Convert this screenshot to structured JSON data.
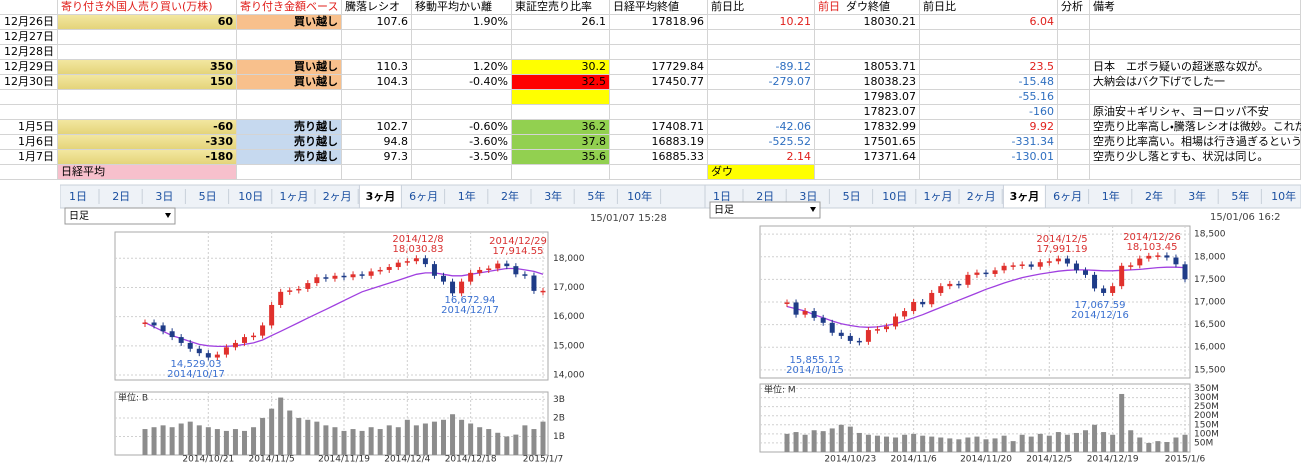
{
  "sheet": {
    "header": [
      null,
      "寄り付き外国人売り買い(万株)",
      "寄り付き金額ベース",
      "騰落レシオ",
      "移動平均かい離",
      "東証空売り比率",
      "日経平均終値",
      "前日比",
      [
        "前日",
        "ダウ終値"
      ],
      "前日比",
      "分析",
      "備考"
    ],
    "rows": [
      [
        "12月26日",
        "60",
        "買い越し",
        "107.6",
        "1.90%",
        "26.1",
        "17818.96",
        "10.21",
        "18030.21",
        "6.04",
        null,
        null
      ],
      [
        "12月27日",
        null,
        null,
        null,
        null,
        null,
        null,
        null,
        null,
        null,
        null,
        null
      ],
      [
        "12月28日",
        null,
        null,
        null,
        null,
        null,
        null,
        null,
        null,
        null,
        null,
        null
      ],
      [
        "12月29日",
        "350",
        "買い越し",
        "110.3",
        "1.20%",
        "30.2",
        "17729.84",
        "-89.12",
        "18053.71",
        "23.5",
        null,
        "日本　エボラ疑いの超迷惑な奴が。"
      ],
      [
        "12月30日",
        "150",
        "買い越し",
        "104.3",
        "-0.40%",
        "32.5",
        "17450.77",
        "-279.07",
        "18038.23",
        "-15.48",
        null,
        "大納会はバク下げでした一"
      ],
      [
        null,
        null,
        null,
        null,
        null,
        null,
        null,
        null,
        "17983.07",
        "-55.16",
        null,
        null
      ],
      [
        null,
        null,
        null,
        null,
        null,
        null,
        null,
        null,
        "17823.07",
        "-160",
        null,
        "原油安＋ギリシャ、ヨーロッパ不安"
      ],
      [
        "1月5日",
        "-60",
        "売り越し",
        "102.7",
        "-0.60%",
        "36.2",
        "17408.71",
        "-42.06",
        "17832.99",
        "9.92",
        null,
        "空売り比率高し・騰落レシオは微妙。これだけ"
      ],
      [
        "1月6日",
        "-330",
        "売り越し",
        "94.8",
        "-3.60%",
        "37.8",
        "16883.19",
        "-525.52",
        "17501.65",
        "-331.34",
        null,
        "空売り比率高い。相場は行き過ぎるというが・"
      ],
      [
        "1月7日",
        "-180",
        "売り越し",
        "97.3",
        "-3.50%",
        "35.6",
        "16885.33",
        "2.14",
        "17371.64",
        "-130.01",
        null,
        "空売り少し落とすも、状況は同じ。"
      ],
      [
        null,
        "日経平均",
        null,
        null,
        null,
        null,
        null,
        "ダウ",
        null,
        null,
        null,
        null
      ]
    ]
  },
  "chart_data": [
    {
      "type": "candlestick",
      "tabs": [
        "1日",
        "2日",
        "3日",
        "5日",
        "10日",
        "1ヶ月",
        "2ヶ月",
        "3ヶ月",
        "6ヶ月",
        "1年",
        "2年",
        "3年",
        "5年",
        "10年"
      ],
      "dropdown": "日足",
      "timestamp": "15/01/07 15:28",
      "categories": [
        null,
        null,
        null,
        null,
        null,
        null,
        null,
        "2014/10/21",
        null,
        null,
        null,
        null,
        null,
        null,
        "2014/11/5",
        null,
        null,
        null,
        null,
        null,
        null,
        null,
        "2014/11/19",
        null,
        null,
        null,
        null,
        null,
        null,
        "2014/12/4",
        null,
        null,
        null,
        null,
        null,
        null,
        "2014/12/18",
        null,
        null,
        null,
        null,
        null,
        null,
        null,
        "2015/1/7"
      ],
      "close": [
        15800,
        15700,
        15500,
        15300,
        15100,
        14900,
        14750,
        14600,
        14700,
        14950,
        15100,
        15300,
        15350,
        15700,
        16400,
        16850,
        16900,
        16950,
        17150,
        17350,
        17300,
        17400,
        17350,
        17450,
        17400,
        17550,
        17600,
        17700,
        17850,
        17900,
        18000,
        17800,
        17400,
        17200,
        16800,
        17200,
        17500,
        17600,
        17650,
        17818,
        17730,
        17451,
        17409,
        16883,
        16885
      ],
      "ma": [
        15800,
        15650,
        15500,
        15350,
        15250,
        15150,
        15050,
        15000,
        14980,
        14980,
        15000,
        15050,
        15100,
        15200,
        15350,
        15500,
        15650,
        15800,
        15950,
        16100,
        16250,
        16400,
        16550,
        16700,
        16850,
        16950,
        17050,
        17150,
        17250,
        17350,
        17450,
        17500,
        17500,
        17450,
        17400,
        17400,
        17450,
        17500,
        17550,
        17600,
        17650,
        17650,
        17600,
        17550,
        17450
      ],
      "up_color": "#e0302c",
      "down_color": "#1f3c88",
      "ma_color": "#a040e0",
      "ylim": [
        13830,
        18900
      ],
      "yticks": [
        {
          "value": 14000,
          "label": "14,000"
        },
        {
          "value": 15000,
          "label": "15,000"
        },
        {
          "value": 16000,
          "label": "16,000"
        },
        {
          "value": 17000,
          "label": "17,000"
        },
        {
          "value": 18000,
          "label": "18,000"
        }
      ],
      "annotations": [
        {
          "lines": [
            "2014/12/8",
            "18,030.83"
          ],
          "color": "#d83030"
        },
        {
          "lines": [
            "2014/12/29",
            "17,914.55"
          ],
          "color": "#d83030"
        },
        {
          "lines": [
            "16,672.94",
            "2014/12/17"
          ],
          "color": "#3a70d0"
        },
        {
          "lines": [
            "14,529.03",
            "2014/10/17"
          ],
          "color": "#3a70d0"
        }
      ],
      "volume": {
        "unit_label": "単位: B",
        "color": "#8c8c8c",
        "values": [
          1.4,
          1.5,
          1.6,
          1.5,
          1.7,
          1.8,
          1.6,
          1.5,
          1.4,
          1.3,
          1.4,
          1.3,
          1.5,
          2.0,
          2.5,
          3.1,
          2.4,
          2.0,
          1.9,
          1.8,
          1.6,
          1.5,
          1.3,
          1.4,
          1.3,
          1.5,
          1.4,
          1.6,
          1.5,
          1.9,
          1.6,
          1.7,
          1.8,
          1.9,
          2.2,
          1.9,
          1.7,
          1.5,
          1.4,
          1.2,
          1.0,
          1.1,
          1.6,
          1.4,
          1.8
        ],
        "ylim": [
          0,
          3.4
        ],
        "yticks": [
          {
            "value": 1,
            "label": "1B"
          },
          {
            "value": 2,
            "label": "2B"
          },
          {
            "value": 3,
            "label": "3B"
          }
        ]
      }
    },
    {
      "type": "candlestick",
      "tabs": [
        "1日",
        "2日",
        "3日",
        "5日",
        "10日",
        "1ヶ月",
        "2ヶ月",
        "3ヶ月",
        "6ヶ月",
        "1年",
        "2年",
        "3年",
        "5年",
        "10年"
      ],
      "dropdown": "日足",
      "timestamp": "15/01/06 16:2",
      "categories": [
        null,
        null,
        null,
        null,
        null,
        null,
        null,
        "2014/10/23",
        null,
        null,
        null,
        null,
        null,
        null,
        "2014/11/6",
        null,
        null,
        null,
        null,
        null,
        null,
        null,
        "2014/11/20",
        null,
        null,
        null,
        null,
        null,
        null,
        "2014/12/5",
        null,
        null,
        null,
        null,
        null,
        null,
        "2014/12/19",
        null,
        null,
        null,
        null,
        null,
        null,
        null,
        "2015/1/6"
      ],
      "close": [
        16990,
        16720,
        16800,
        16650,
        16540,
        16320,
        16250,
        16140,
        16120,
        16380,
        16400,
        16460,
        16680,
        16800,
        17000,
        16950,
        17200,
        17350,
        17400,
        17380,
        17600,
        17650,
        17620,
        17700,
        17800,
        17810,
        17830,
        17780,
        17880,
        17900,
        17960,
        17850,
        17700,
        17600,
        17300,
        17200,
        17350,
        17800,
        17810,
        17960,
        18020,
        18030,
        17983,
        17833,
        17502
      ],
      "ma": [
        16900,
        16850,
        16800,
        16720,
        16650,
        16580,
        16520,
        16480,
        16450,
        16440,
        16450,
        16480,
        16520,
        16580,
        16650,
        16720,
        16800,
        16880,
        16960,
        17040,
        17120,
        17200,
        17280,
        17350,
        17420,
        17480,
        17540,
        17580,
        17620,
        17650,
        17680,
        17700,
        17710,
        17710,
        17700,
        17690,
        17690,
        17700,
        17710,
        17720,
        17740,
        17760,
        17770,
        17770,
        17760
      ],
      "up_color": "#e0302c",
      "down_color": "#1f3c88",
      "ma_color": "#a040e0",
      "ylim": [
        15320,
        18680
      ],
      "yticks": [
        {
          "value": 15500,
          "label": "15,500"
        },
        {
          "value": 16000,
          "label": "16,000"
        },
        {
          "value": 16500,
          "label": "16,500"
        },
        {
          "value": 17000,
          "label": "17,000"
        },
        {
          "value": 17500,
          "label": "17,500"
        },
        {
          "value": 18000,
          "label": "18,000"
        },
        {
          "value": 18500,
          "label": "18,500"
        }
      ],
      "annotations": [
        {
          "lines": [
            "2014/12/5",
            "17,991.19"
          ],
          "color": "#d83030"
        },
        {
          "lines": [
            "2014/12/26",
            "18,103.45"
          ],
          "color": "#d83030"
        },
        {
          "lines": [
            "17,067.59",
            "2014/12/16"
          ],
          "color": "#3a70d0"
        },
        {
          "lines": [
            "15,855.12",
            "2014/10/15"
          ],
          "color": "#3a70d0"
        }
      ],
      "volume": {
        "unit_label": "単位: M",
        "color": "#8c8c8c",
        "values": [
          100,
          110,
          95,
          120,
          115,
          130,
          150,
          140,
          105,
          95,
          90,
          85,
          80,
          95,
          100,
          90,
          85,
          80,
          75,
          70,
          80,
          85,
          70,
          75,
          90,
          60,
          95,
          85,
          100,
          90,
          110,
          95,
          105,
          120,
          150,
          110,
          95,
          320,
          120,
          80,
          50,
          60,
          55,
          80,
          95
        ],
        "ylim": [
          0,
          375
        ],
        "yticks": [
          {
            "value": 50,
            "label": "50M"
          },
          {
            "value": 100,
            "label": "100M"
          },
          {
            "value": 150,
            "label": "150M"
          },
          {
            "value": 200,
            "label": "200M"
          },
          {
            "value": 250,
            "label": "250M"
          },
          {
            "value": 300,
            "label": "300M"
          },
          {
            "value": 350,
            "label": "350M"
          }
        ]
      }
    }
  ]
}
